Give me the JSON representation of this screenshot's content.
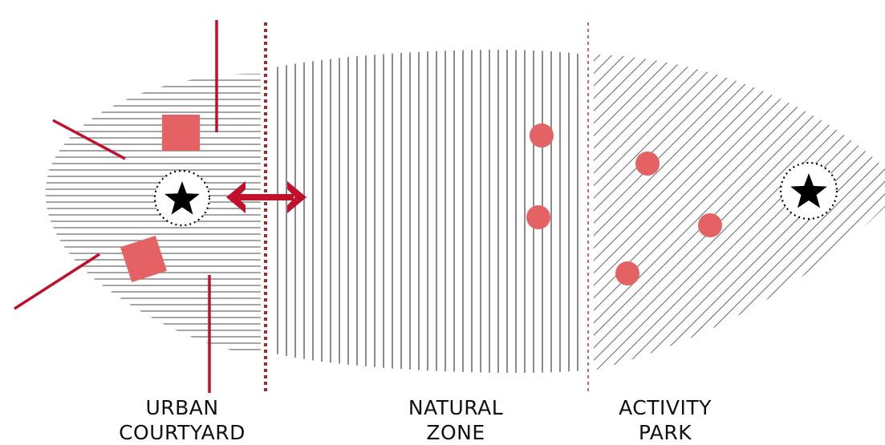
{
  "colors": {
    "accent_dark_red": "#c0102a",
    "marker_salmon": "#e46264",
    "hatch_gray": "#6f6f6f",
    "divider_dotted": "#a52a2a",
    "divider_thin": "#b5333a",
    "star": "#000000",
    "background": "#ffffff"
  },
  "zones": [
    {
      "id": "urban",
      "label_line1": "URBAN",
      "label_line2": "COURTYARD",
      "pattern": "horizontal-hatch"
    },
    {
      "id": "natural",
      "label_line1": "NATURAL",
      "label_line2": "ZONE",
      "pattern": "vertical-hatch"
    },
    {
      "id": "activity",
      "label_line1": "ACTIVITY",
      "label_line2": "PARK",
      "pattern": "diagonal-hatch"
    }
  ],
  "icons": {
    "focal_point": "star-icon",
    "connection": "double-arrow-icon",
    "feature": "square-marker-icon",
    "point": "circle-marker-icon"
  }
}
